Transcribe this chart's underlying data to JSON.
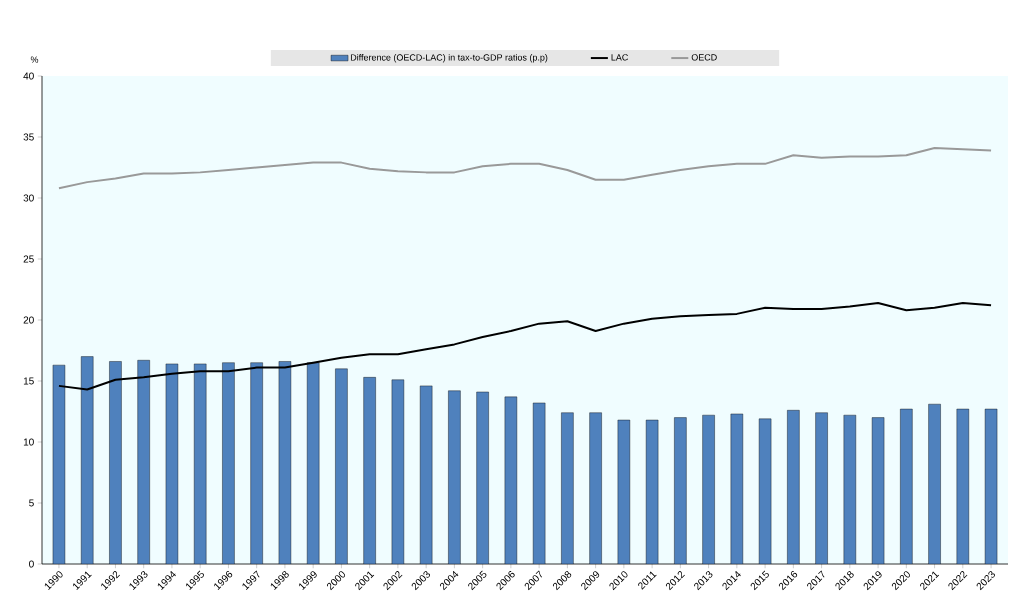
{
  "chart_data": {
    "type": "bar",
    "ylabel": "%",
    "categories": [
      "1990",
      "1991",
      "1992",
      "1993",
      "1994",
      "1995",
      "1996",
      "1997",
      "1998",
      "1999",
      "2000",
      "2001",
      "2002",
      "2003",
      "2004",
      "2005",
      "2006",
      "2007",
      "2008",
      "2009",
      "2010",
      "2011",
      "2012",
      "2013",
      "2014",
      "2015",
      "2016",
      "2017",
      "2018",
      "2019",
      "2020",
      "2021",
      "2022",
      "2023"
    ],
    "series": [
      {
        "name": "Difference (OECD-LAC) in tax-to-GDP ratios (p.p)",
        "color": "#4f81bd",
        "values": [
          16.3,
          17.0,
          16.6,
          16.7,
          16.4,
          16.4,
          16.5,
          16.5,
          16.6,
          16.5,
          16.0,
          15.3,
          15.1,
          14.6,
          14.2,
          14.1,
          13.7,
          13.2,
          12.4,
          12.4,
          11.8,
          11.8,
          12.0,
          12.2,
          12.3,
          11.9,
          12.6,
          12.4,
          12.2,
          12.0,
          12.7,
          13.1,
          12.7,
          12.7
        ]
      },
      {
        "name": "LAC",
        "type": "line",
        "color": "#000000",
        "values": [
          14.6,
          14.3,
          15.1,
          15.3,
          15.6,
          15.8,
          15.8,
          16.1,
          16.1,
          16.5,
          16.9,
          17.2,
          17.2,
          17.6,
          18.0,
          18.6,
          19.1,
          19.7,
          19.9,
          19.1,
          19.7,
          20.1,
          20.3,
          20.4,
          20.5,
          21.0,
          20.9,
          20.9,
          21.1,
          21.4,
          20.8,
          21.0,
          21.4,
          21.2
        ]
      },
      {
        "name": "OECD",
        "type": "line",
        "color": "#999999",
        "values": [
          30.8,
          31.3,
          31.6,
          32.0,
          32.0,
          32.1,
          32.3,
          32.5,
          32.7,
          32.9,
          32.9,
          32.4,
          32.2,
          32.1,
          32.1,
          32.6,
          32.8,
          32.8,
          32.3,
          31.5,
          31.5,
          31.9,
          32.3,
          32.6,
          32.8,
          32.8,
          33.5,
          33.3,
          33.4,
          33.4,
          33.5,
          34.1,
          34.0,
          33.9
        ]
      }
    ],
    "ylim": [
      0,
      40
    ],
    "yticks": [
      0,
      5,
      10,
      15,
      20,
      25,
      30,
      35,
      40
    ],
    "legend": "top",
    "marker": "none",
    "line_style": "solid"
  }
}
